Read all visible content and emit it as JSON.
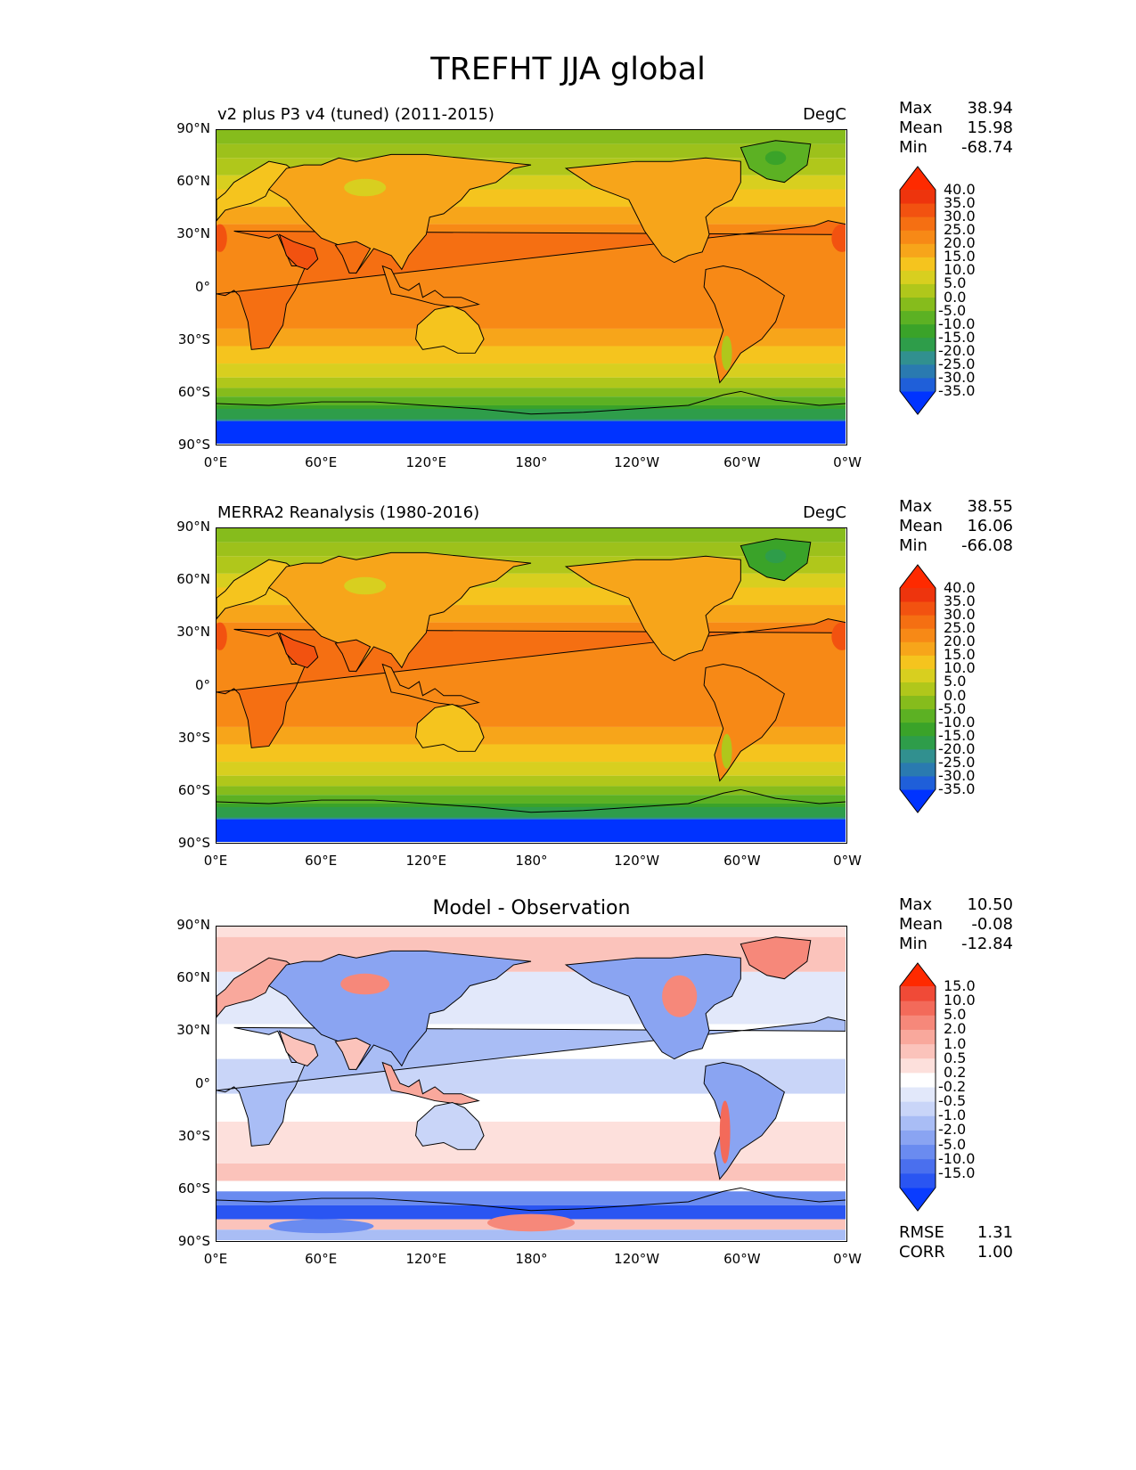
{
  "title": "TREFHT JJA global",
  "axes": {
    "yticks": [
      "90°N",
      "60°N",
      "30°N",
      "0°",
      "30°S",
      "60°S",
      "90°S"
    ],
    "xticks": [
      "0°E",
      "60°E",
      "120°E",
      "180°",
      "120°W",
      "60°W",
      "0°W"
    ]
  },
  "panels": [
    {
      "left_title": "v2 plus P3 v4 (tuned) (2011-2015)",
      "right_title": "DegC",
      "center_title": "",
      "stats": [
        [
          "Max",
          "38.94"
        ],
        [
          "Mean",
          "15.98"
        ],
        [
          "Min",
          "-68.74"
        ]
      ],
      "colorbar": {
        "labels": [
          "40.0",
          "35.0",
          "30.0",
          "25.0",
          "20.0",
          "15.0",
          "10.0",
          "5.0",
          "0.0",
          "-5.0",
          "-10.0",
          "-15.0",
          "-20.0",
          "-25.0",
          "-30.0",
          "-35.0"
        ],
        "colors": [
          "#0033ff",
          "#1f5fd9",
          "#2a7ab0",
          "#31908f",
          "#2e9d4a",
          "#3aa329",
          "#5cb123",
          "#86bc1c",
          "#b0c71b",
          "#d8cf1f",
          "#f5c41e",
          "#f7a51a",
          "#f78916",
          "#f56f12",
          "#f25210",
          "#ee340d",
          "#fe2a00"
        ]
      }
    },
    {
      "left_title": "MERRA2 Reanalysis (1980-2016)",
      "right_title": "DegC",
      "center_title": "",
      "stats": [
        [
          "Max",
          "38.55"
        ],
        [
          "Mean",
          "16.06"
        ],
        [
          "Min",
          "-66.08"
        ]
      ],
      "colorbar": {
        "labels": [
          "40.0",
          "35.0",
          "30.0",
          "25.0",
          "20.0",
          "15.0",
          "10.0",
          "5.0",
          "0.0",
          "-5.0",
          "-10.0",
          "-15.0",
          "-20.0",
          "-25.0",
          "-30.0",
          "-35.0"
        ],
        "colors": [
          "#0033ff",
          "#1f5fd9",
          "#2a7ab0",
          "#31908f",
          "#2e9d4a",
          "#3aa329",
          "#5cb123",
          "#86bc1c",
          "#b0c71b",
          "#d8cf1f",
          "#f5c41e",
          "#f7a51a",
          "#f78916",
          "#f56f12",
          "#f25210",
          "#ee340d",
          "#fe2a00"
        ]
      }
    },
    {
      "left_title": "",
      "right_title": "",
      "center_title": "Model - Observation",
      "stats": [
        [
          "Max",
          "10.50"
        ],
        [
          "Mean",
          "-0.08"
        ],
        [
          "Min",
          "-12.84"
        ]
      ],
      "extra_stats": [
        [
          "RMSE",
          "1.31"
        ],
        [
          "CORR",
          "1.00"
        ]
      ],
      "colorbar": {
        "labels": [
          "15.0",
          "10.0",
          "5.0",
          "2.0",
          "1.0",
          "0.5",
          "0.2",
          "-0.2",
          "-0.5",
          "-1.0",
          "-2.0",
          "-5.0",
          "-10.0",
          "-15.0"
        ],
        "colors": [
          "#0a3cff",
          "#2a55f2",
          "#4a6fee",
          "#6a8bf0",
          "#8aa4f2",
          "#a9bdf5",
          "#c9d5f8",
          "#e2e8fa",
          "#ffffff",
          "#fde0dc",
          "#fbc3bb",
          "#f9a89c",
          "#f6887a",
          "#f36a5a",
          "#f04a37",
          "#fe2a00"
        ]
      }
    }
  ],
  "colors": {
    "ocean_warm": "#f78916",
    "land_warm": "#f56f12",
    "polar_south": "#0033ff",
    "arctic": "#86bc1c",
    "coast": "#000000"
  }
}
